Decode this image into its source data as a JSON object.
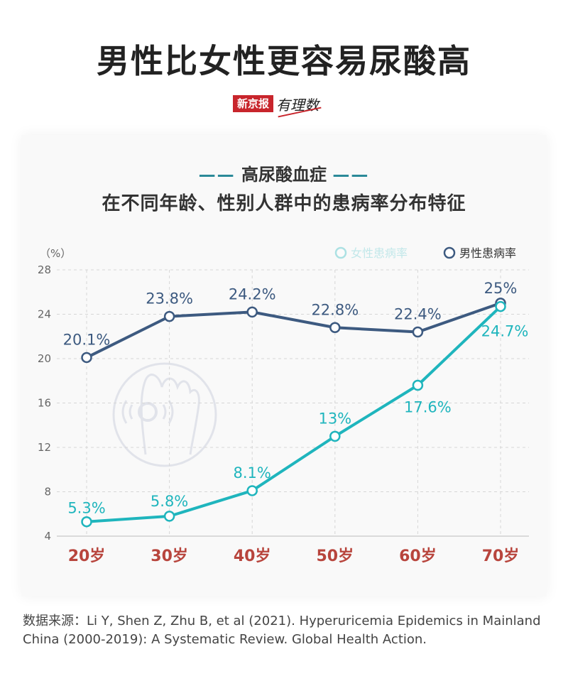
{
  "header": {
    "title": "男性比女性更容易尿酸高",
    "brand_tag": "新京报",
    "brand_script": "有理数"
  },
  "chart_data": {
    "type": "line",
    "subtitle_line1": "高尿酸血症",
    "subtitle_dashes": "——",
    "subtitle_line2": "在不同年龄、性别人群中的患病率分布特征",
    "ylabel": "（%）",
    "ylim": [
      4,
      28
    ],
    "yticks": [
      4,
      8,
      12,
      16,
      20,
      24,
      28
    ],
    "categories": [
      "20岁",
      "30岁",
      "40岁",
      "50岁",
      "60岁",
      "70岁"
    ],
    "grid": true,
    "legend_position": "top-right",
    "series": [
      {
        "name": "男性患病率",
        "color": "#3d5a80",
        "values": [
          20.1,
          23.8,
          24.2,
          22.8,
          22.4,
          25
        ],
        "labels": [
          "20.1%",
          "23.8%",
          "24.2%",
          "22.8%",
          "22.4%",
          "25%"
        ]
      },
      {
        "name": "女性患病率",
        "color": "#1fb5bd",
        "values": [
          5.3,
          5.8,
          8.1,
          13,
          17.6,
          24.7
        ],
        "labels": [
          "5.3%",
          "5.8%",
          "8.1%",
          "13%",
          "17.6%",
          "24.7%"
        ]
      }
    ],
    "colors": {
      "category_label": "#b8453d",
      "axis_text": "#666666",
      "grid": "#d6d6d6"
    }
  },
  "footer": {
    "source": "数据来源：Li Y, Shen Z, Zhu B, et al (2021). Hyperuricemia Epidemics in Mainland China (2000-2019): A Systematic Review. Global Health Action."
  }
}
